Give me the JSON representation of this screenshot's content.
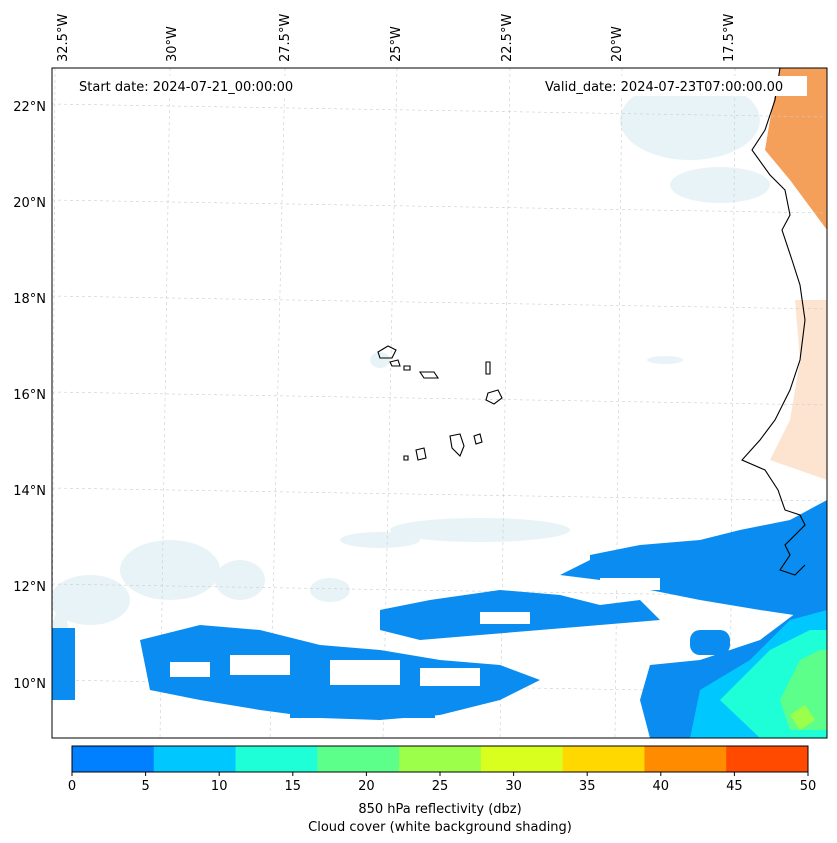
{
  "map": {
    "start_date_label": "Start date: 2024-07-21_00:00:00",
    "valid_date_label": "Valid_date: 2024-07-23T07:00:00.00",
    "lon_ticks": [
      "32.5°W",
      "30°W",
      "27.5°W",
      "25°W",
      "22.5°W",
      "20°W",
      "17.5°W"
    ],
    "lat_ticks": [
      "22°N",
      "20°N",
      "18°N",
      "16°N",
      "14°N",
      "12°N",
      "10°N"
    ]
  },
  "colorbar": {
    "ticks": [
      "0",
      "5",
      "10",
      "15",
      "20",
      "25",
      "30",
      "35",
      "40",
      "45",
      "50"
    ],
    "colors": [
      "#0080ff",
      "#00c8ff",
      "#1effd8",
      "#5cff8a",
      "#9cff4a",
      "#d8ff1e",
      "#ffd800",
      "#ff8c00",
      "#ff4a00"
    ],
    "label_line1": "850 hPa reflectivity (dbz)",
    "label_line2": "Cloud cover (white background shading)"
  },
  "colors": {
    "coast": "#000000",
    "land_shade": "#f5a05a",
    "cloud_shade": "#e4f1f6",
    "grid": "#c8c8c8",
    "radar_low": "#0a8cf0"
  }
}
